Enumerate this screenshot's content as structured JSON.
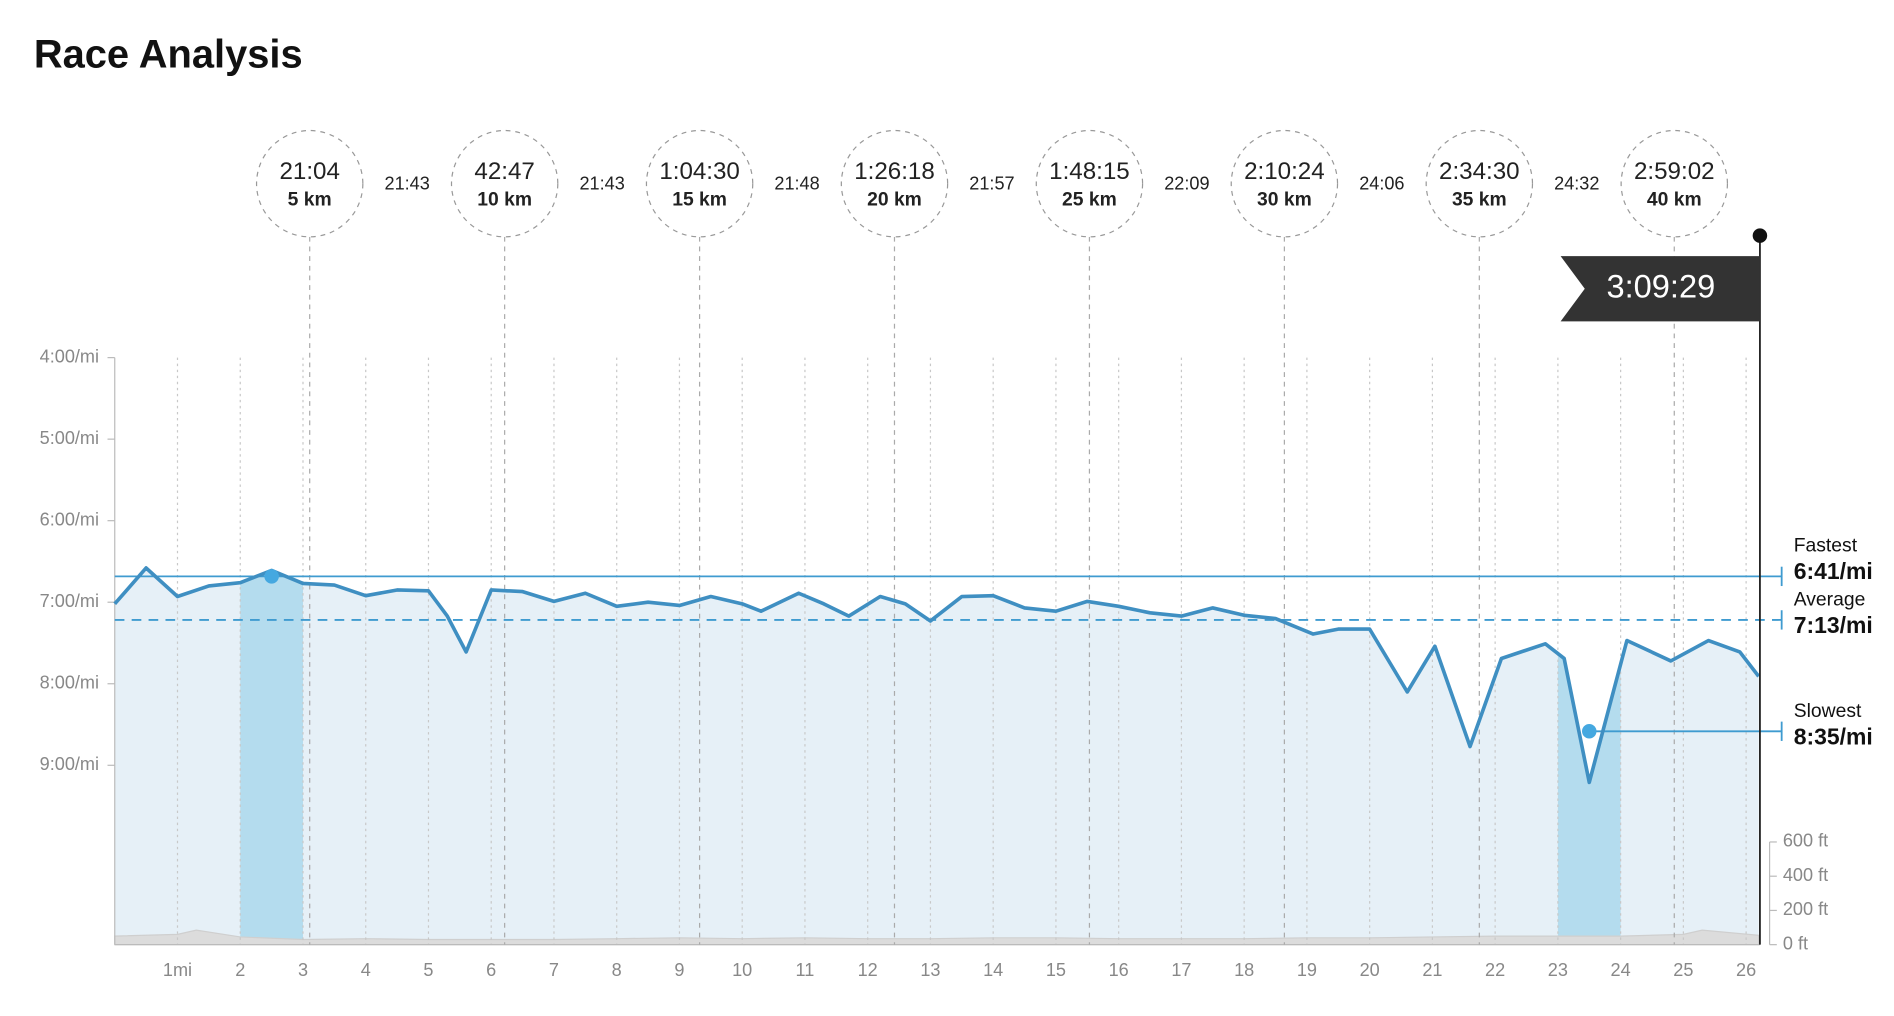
{
  "chart_data": {
    "type": "line",
    "title": "Race Analysis",
    "color": "#3f8fc2",
    "x": [
      0,
      0.5,
      1,
      1.5,
      2,
      2.5,
      3,
      3.5,
      4,
      4.5,
      5,
      5.3,
      5.6,
      6,
      6.5,
      7,
      7.5,
      8,
      8.5,
      9,
      9.5,
      10,
      10.3,
      10.9,
      11.3,
      11.7,
      12.2,
      12.6,
      13,
      13.5,
      14,
      14.5,
      15,
      15.5,
      16,
      16.5,
      17,
      17.5,
      18,
      18.5,
      19.1,
      19.5,
      20,
      20.6,
      21.04,
      21.6,
      22.1,
      22.8,
      23.1,
      23.5,
      24.1,
      24.8,
      25.4,
      25.9,
      26.2
    ],
    "values": [
      7.02,
      6.58,
      6.93,
      6.8,
      6.76,
      6.61,
      6.77,
      6.79,
      6.92,
      6.85,
      6.86,
      7.17,
      7.61,
      6.85,
      6.87,
      6.99,
      6.89,
      7.05,
      7.0,
      7.04,
      6.93,
      7.02,
      7.11,
      6.89,
      7.02,
      7.17,
      6.93,
      7.02,
      7.23,
      6.93,
      6.92,
      7.07,
      7.11,
      6.99,
      7.05,
      7.13,
      7.17,
      7.07,
      7.16,
      7.2,
      7.39,
      7.33,
      7.33,
      8.1,
      7.54,
      8.77,
      7.69,
      7.51,
      7.69,
      9.21,
      7.47,
      7.72,
      7.47,
      7.61,
      7.91
    ],
    "xlim": [
      0,
      26.22
    ],
    "xticks": [
      {
        "value": 1,
        "label": "1mi"
      },
      2,
      3,
      4,
      5,
      6,
      7,
      8,
      9,
      10,
      11,
      12,
      13,
      14,
      15,
      16,
      17,
      18,
      19,
      20,
      21,
      22,
      23,
      24,
      25,
      26
    ],
    "ylim": [
      4,
      11.2
    ],
    "yticks": [
      {
        "value": 4,
        "label": "4:00/mi"
      },
      {
        "value": 5,
        "label": "5:00/mi"
      },
      {
        "value": 6,
        "label": "6:00/mi"
      },
      {
        "value": 7,
        "label": "7:00/mi"
      },
      {
        "value": 8,
        "label": "8:00/mi"
      },
      {
        "value": 9,
        "label": "9:00/mi"
      }
    ],
    "y2lim": [
      0,
      3430
    ],
    "y2ticks": [
      {
        "value": 0,
        "label": "0 ft"
      },
      {
        "value": 200,
        "label": "200 ft"
      },
      {
        "value": 400,
        "label": "400 ft"
      },
      {
        "value": 600,
        "label": "600 ft"
      }
    ],
    "elevation": {
      "axis": "y2",
      "color": "#dcdcdc",
      "x": [
        0,
        1,
        1.3,
        2,
        3,
        4,
        5,
        6,
        7,
        8,
        9,
        10,
        11,
        12,
        13,
        14,
        15,
        16,
        17,
        18,
        19,
        20,
        21,
        22,
        23,
        24,
        25,
        25.3,
        26.2
      ],
      "values": [
        50,
        60,
        85,
        45,
        30,
        35,
        30,
        30,
        30,
        35,
        40,
        35,
        40,
        35,
        35,
        40,
        40,
        35,
        35,
        35,
        40,
        40,
        45,
        50,
        50,
        50,
        60,
        85,
        55
      ]
    },
    "fastest": {
      "label": "Fastest",
      "value": 6.683,
      "value_label": "6:41/mi",
      "x": 2.5,
      "band": [
        2,
        3
      ]
    },
    "average": {
      "label": "Average",
      "value": 7.217,
      "value_label": "7:13/mi"
    },
    "slowest": {
      "label": "Slowest",
      "value": 8.583,
      "value_label": "8:35/mi",
      "x": 23.5,
      "band": [
        23,
        24
      ]
    },
    "checkpoints": [
      {
        "time": "21:04",
        "distance": "5 km",
        "x": 3.107
      },
      {
        "time": "42:47",
        "distance": "10 km",
        "x": 6.214
      },
      {
        "time": "1:04:30",
        "distance": "15 km",
        "x": 9.321
      },
      {
        "time": "1:26:18",
        "distance": "20 km",
        "x": 12.427
      },
      {
        "time": "1:48:15",
        "distance": "25 km",
        "x": 15.534
      },
      {
        "time": "2:10:24",
        "distance": "30 km",
        "x": 18.641
      },
      {
        "time": "2:34:30",
        "distance": "35 km",
        "x": 21.748
      },
      {
        "time": "2:59:02",
        "distance": "40 km",
        "x": 24.855
      }
    ],
    "splits": [
      "21:43",
      "21:43",
      "21:48",
      "21:57",
      "22:09",
      "24:06",
      "24:32"
    ],
    "finish": "3:09:29"
  }
}
